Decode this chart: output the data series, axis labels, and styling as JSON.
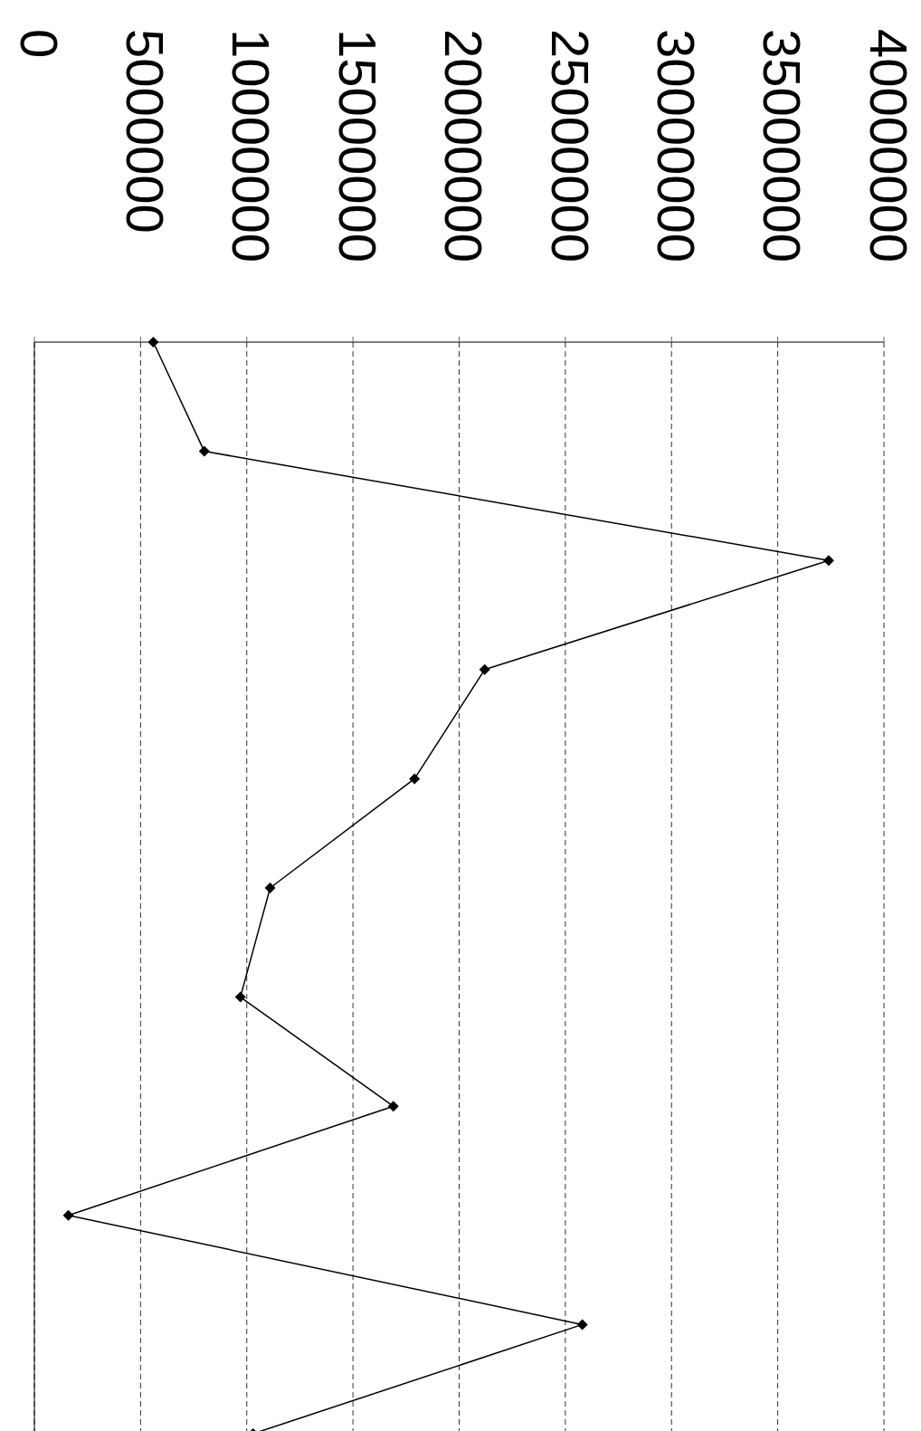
{
  "chart_data": {
    "type": "line",
    "orientation": "horizontal",
    "categories": [
      null,
      null,
      null,
      null,
      null,
      null,
      null,
      null,
      null,
      null,
      null
    ],
    "series": [
      {
        "color": "#000000",
        "values": [
          5600000,
          8000000,
          37400000,
          21200000,
          17900000,
          11100000,
          9700000,
          16900000,
          1600000,
          25800000,
          10300000
        ]
      }
    ],
    "xlim": [
      0,
      40000000
    ],
    "xticks": [
      0,
      5000000,
      10000000,
      15000000,
      20000000,
      25000000,
      30000000,
      35000000,
      40000000
    ],
    "grid": "x",
    "marker": "diamond",
    "line_style": "solid",
    "legend": false,
    "tick_labels": "x"
  }
}
